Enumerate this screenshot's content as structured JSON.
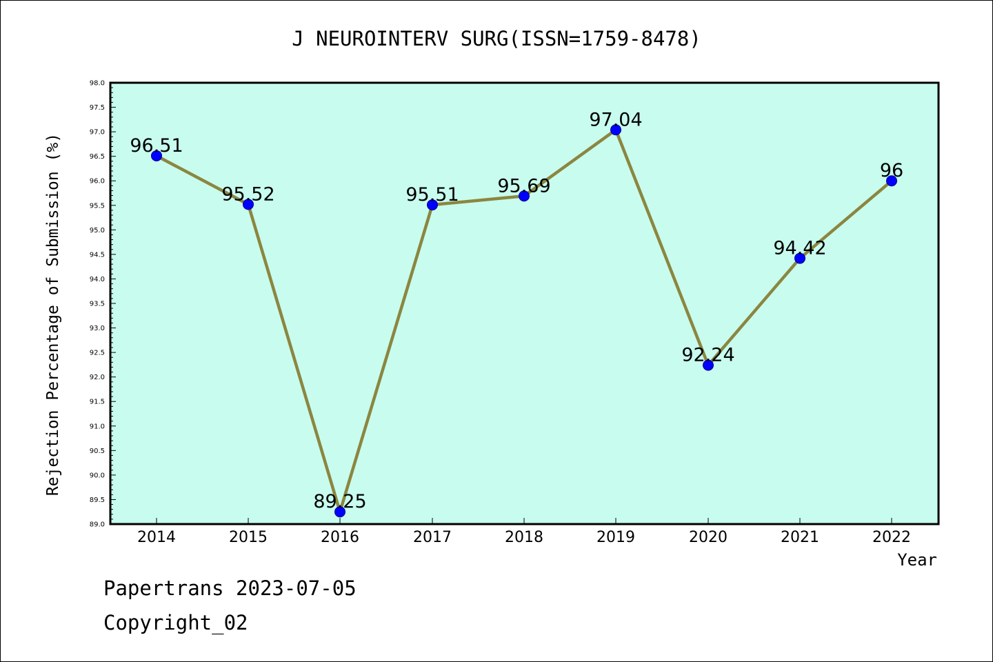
{
  "chart_data": {
    "type": "line",
    "title": "J NEUROINTERV SURG(ISSN=1759-8478)",
    "xlabel": "Year",
    "ylabel": "Rejection Percentage of Submission (%)",
    "x": [
      "2014",
      "2015",
      "2016",
      "2017",
      "2018",
      "2019",
      "2020",
      "2021",
      "2022"
    ],
    "series": [
      {
        "values": [
          96.51,
          95.52,
          89.25,
          95.51,
          95.69,
          97.04,
          92.24,
          94.42,
          96
        ],
        "data_labels": [
          "96.51",
          "95.52",
          "89.25",
          "95.51",
          "95.69",
          "97.04",
          "92.24",
          "94.42",
          "96"
        ]
      }
    ],
    "ylim": [
      89.0,
      98.0
    ],
    "yticks": [
      "89.0",
      "89.5",
      "90.0",
      "90.5",
      "91.0",
      "91.5",
      "92.0",
      "92.5",
      "93.0",
      "93.5",
      "94.0",
      "94.5",
      "95.0",
      "95.5",
      "96.0",
      "96.5",
      "97.0",
      "97.5",
      "98.0"
    ],
    "grid": false,
    "colors": {
      "plot_background": "#c8fcee",
      "line": "#8b8640",
      "marker": "#0000ff"
    }
  },
  "footer": {
    "line1": "Papertrans 2023-07-05",
    "line2": "Copyright_02"
  }
}
